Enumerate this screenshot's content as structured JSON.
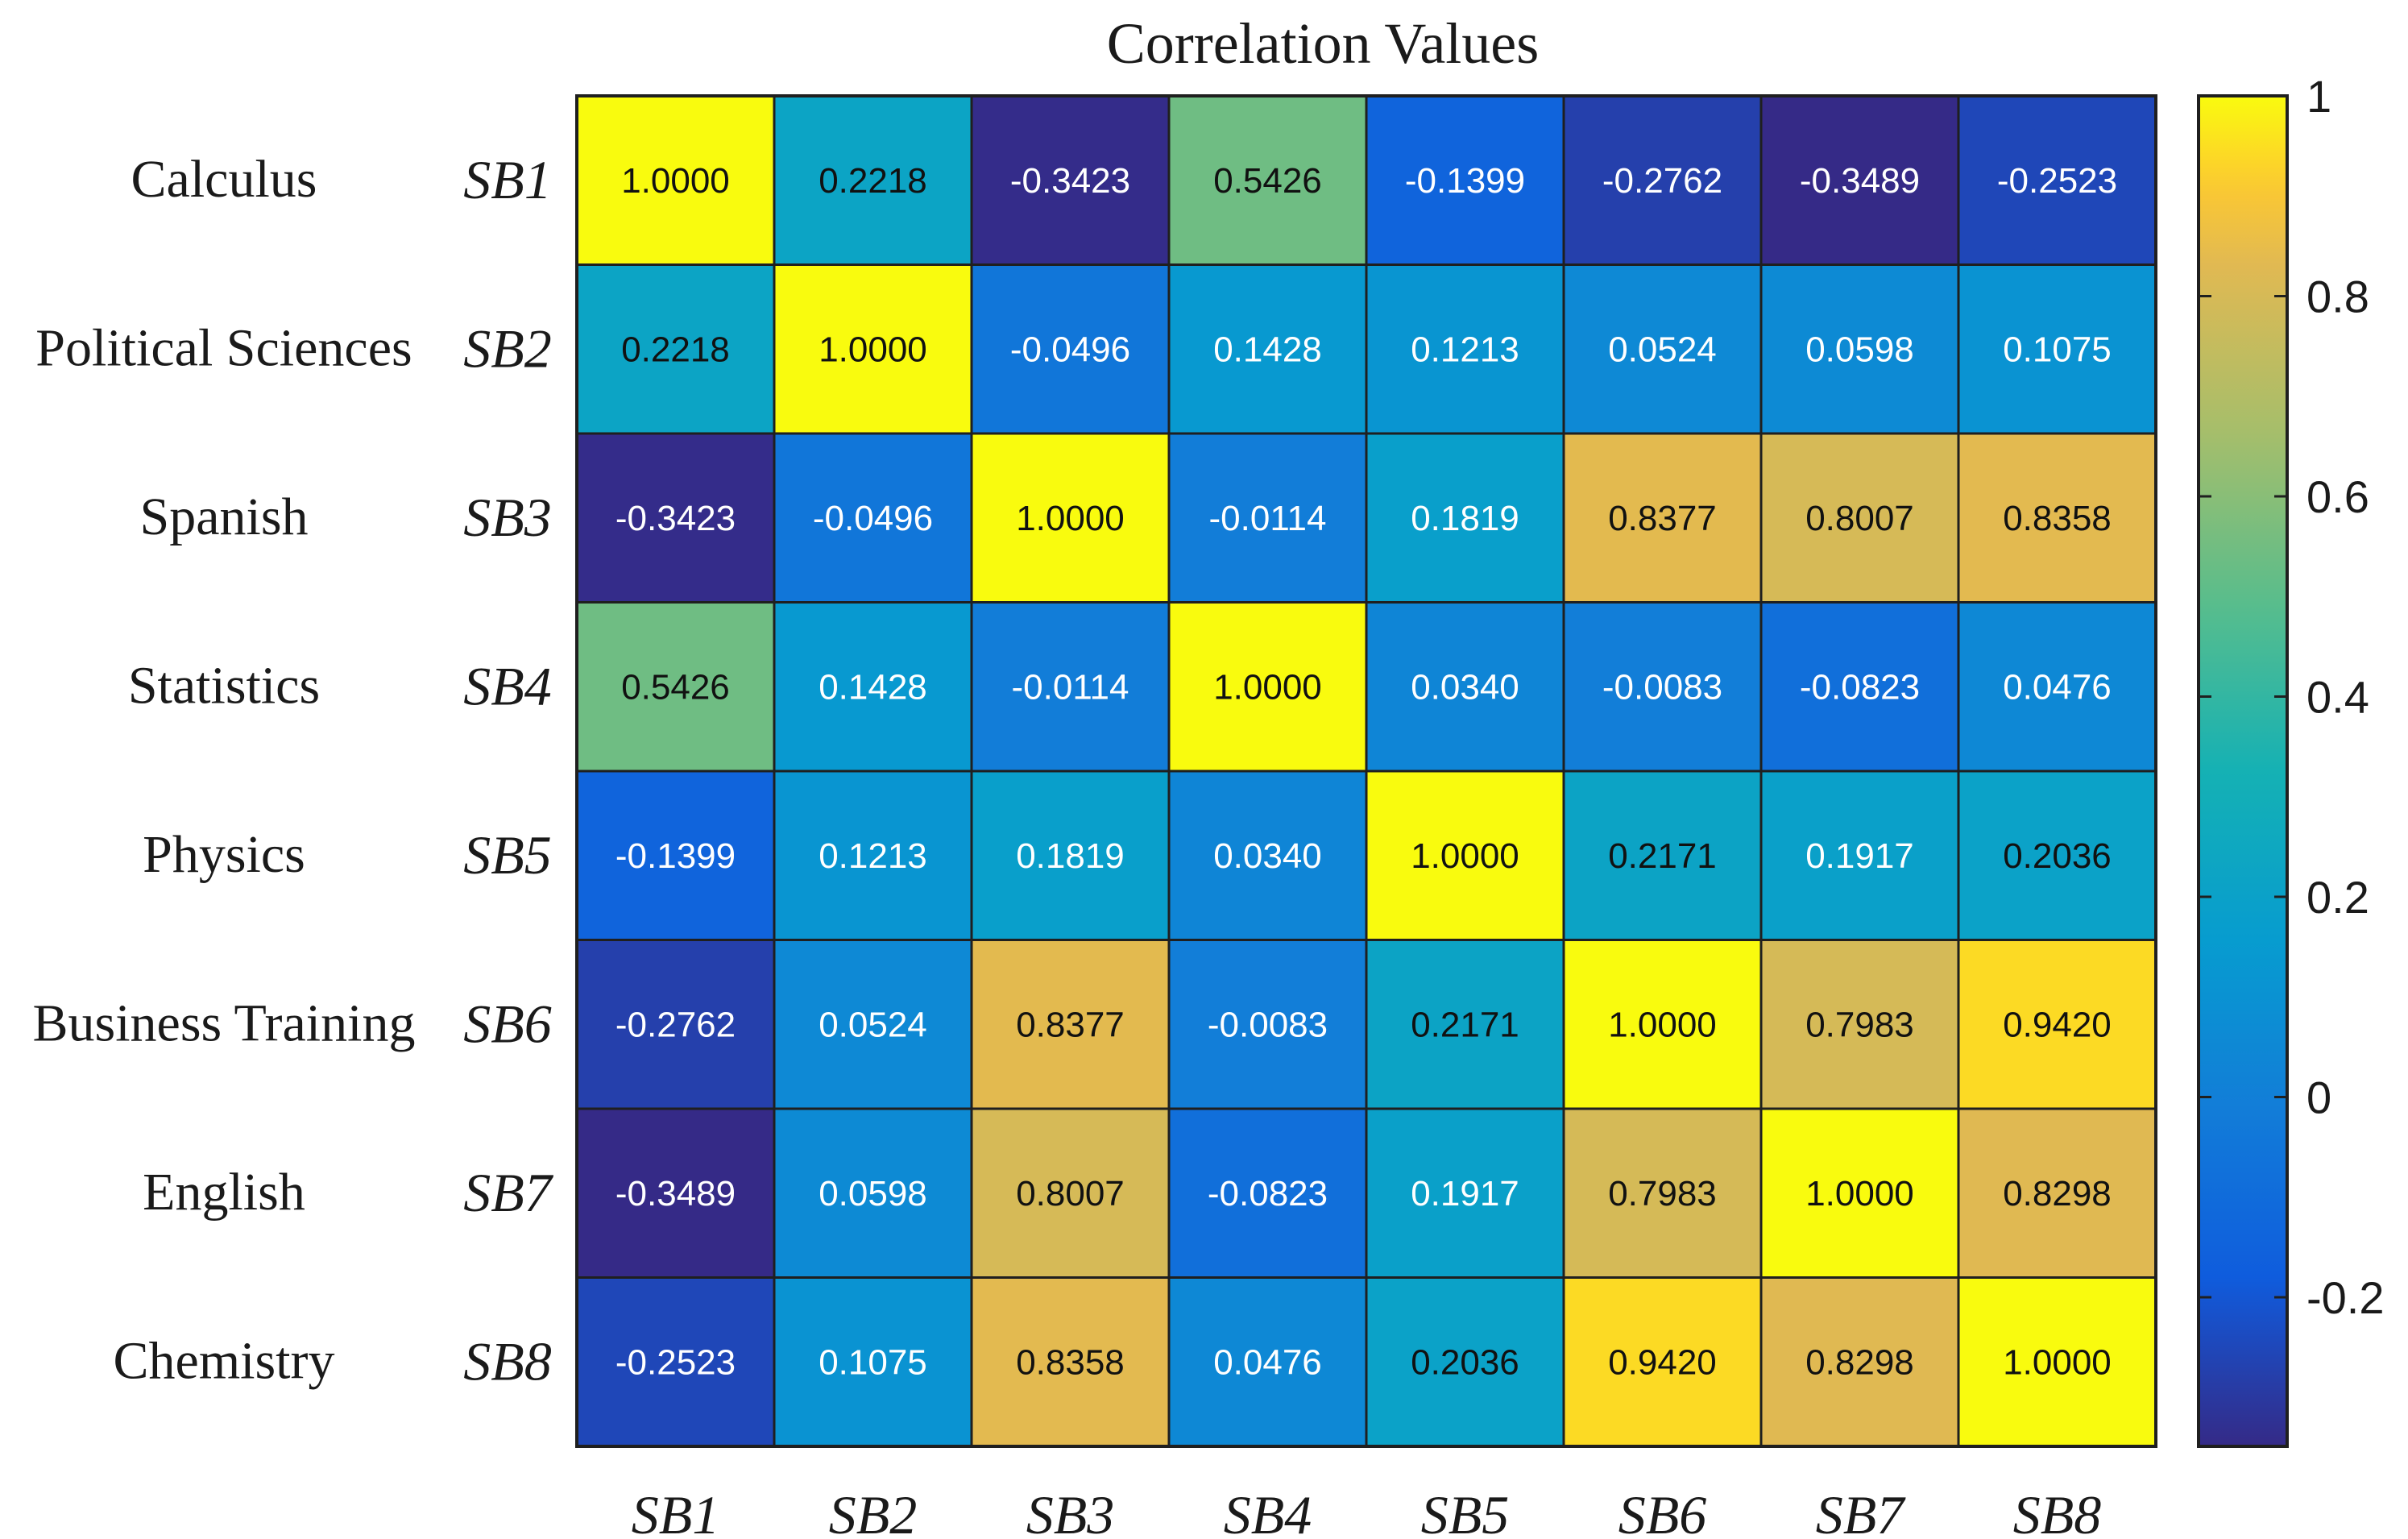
{
  "chart_data": {
    "type": "heatmap",
    "title": "Correlation Values",
    "row_names": [
      "Calculus",
      "Political Sciences",
      "Spanish",
      "Statistics",
      "Physics",
      "Business Training",
      "English",
      "Chemistry"
    ],
    "row_labels": [
      "SB1",
      "SB2",
      "SB3",
      "SB4",
      "SB5",
      "SB6",
      "SB7",
      "SB8"
    ],
    "col_labels": [
      "SB1",
      "SB2",
      "SB3",
      "SB4",
      "SB5",
      "SB6",
      "SB7",
      "SB8"
    ],
    "values": [
      [
        1.0,
        0.2218,
        -0.3423,
        0.5426,
        -0.1399,
        -0.2762,
        -0.3489,
        -0.2523
      ],
      [
        0.2218,
        1.0,
        -0.0496,
        0.1428,
        0.1213,
        0.0524,
        0.0598,
        0.1075
      ],
      [
        -0.3423,
        -0.0496,
        1.0,
        -0.0114,
        0.1819,
        0.8377,
        0.8007,
        0.8358
      ],
      [
        0.5426,
        0.1428,
        -0.0114,
        1.0,
        0.034,
        -0.0083,
        -0.0823,
        0.0476
      ],
      [
        -0.1399,
        0.1213,
        0.1819,
        0.034,
        1.0,
        0.2171,
        0.1917,
        0.2036
      ],
      [
        -0.2762,
        0.0524,
        0.8377,
        -0.0083,
        0.2171,
        1.0,
        0.7983,
        0.942
      ],
      [
        -0.3489,
        0.0598,
        0.8007,
        -0.0823,
        0.1917,
        0.7983,
        1.0,
        0.8298
      ],
      [
        -0.2523,
        0.1075,
        0.8358,
        0.0476,
        0.2036,
        0.942,
        0.8298,
        1.0
      ]
    ],
    "colorbar": {
      "min": -0.3489,
      "max": 1.0,
      "ticks": [
        -0.2,
        0,
        0.2,
        0.4,
        0.6,
        0.8,
        1
      ],
      "tick_labels": [
        "-0.2",
        "0",
        "0.2",
        "0.4",
        "0.6",
        "0.8",
        "1"
      ],
      "colormap": "parula"
    }
  }
}
